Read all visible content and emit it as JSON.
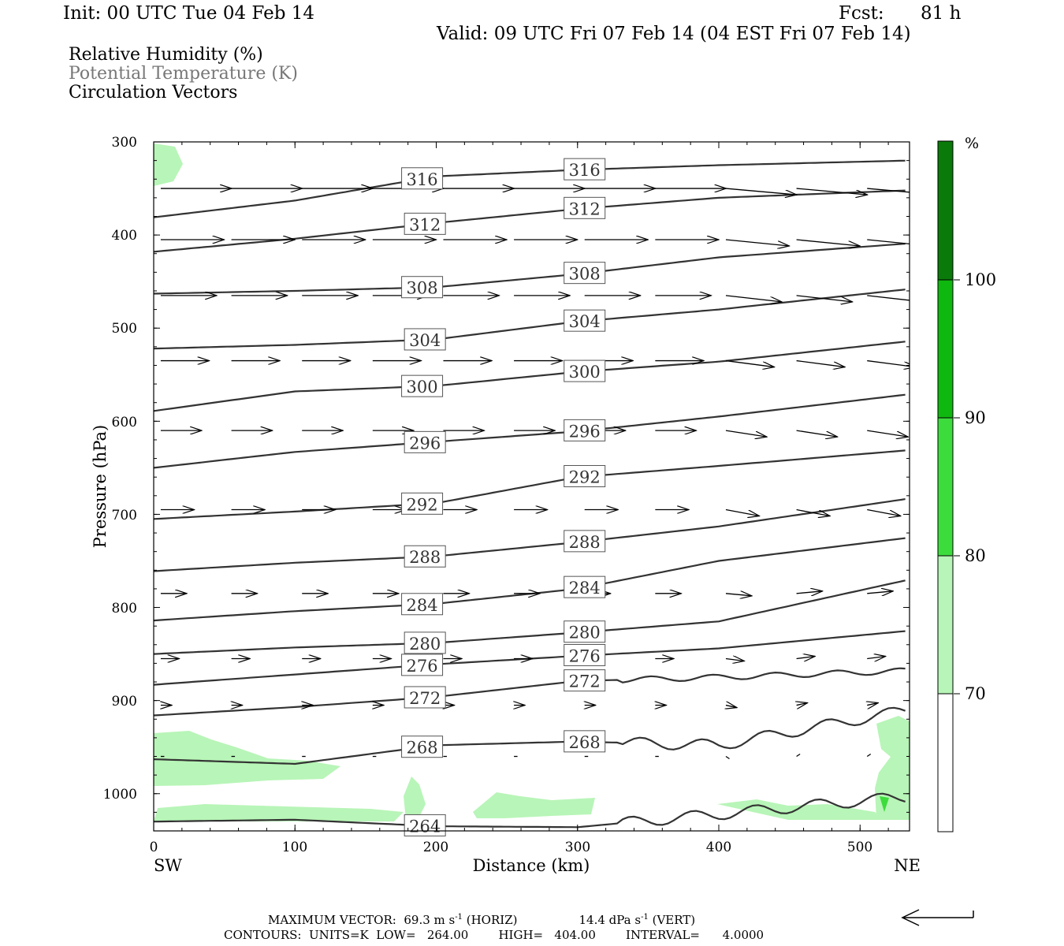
{
  "header": {
    "init": "Init: 00 UTC Tue 04 Feb 14",
    "fcst_label": "Fcst:",
    "fcst_value": "81 h",
    "valid": "Valid: 09 UTC Fri 07 Feb 14 (04 EST Fri 07 Feb 14)"
  },
  "legend": {
    "line1": "Relative Humidity (%)",
    "line2": "Potential Temperature (K)",
    "line3": "Circulation Vectors"
  },
  "colorbar": {
    "unit": "%",
    "labels": [
      "100",
      "90",
      "80",
      "70"
    ],
    "colors": [
      "#0a7a0a",
      "#0fb80f",
      "#3ddc3d",
      "#b8f5b8",
      "#ffffff"
    ]
  },
  "footer": {
    "line1_a": "MAXIMUM VECTOR:  69.3 m s",
    "line1_b": "-1",
    "line1_c": " (HORIZ)",
    "line1_d": "14.4 dPa s",
    "line1_e": "-1",
    "line1_f": " (VERT)",
    "line2": "CONTOURS:  UNITS=K  LOW=   264.00        HIGH=   404.00        INTERVAL=      4.0000"
  },
  "chart_data": {
    "type": "cross-section contour",
    "xlabel": "Distance (km)",
    "ylabel": "Pressure (hPa)",
    "x_ticks": [
      "0",
      "100",
      "200",
      "300",
      "400",
      "500"
    ],
    "y_ticks": [
      "300",
      "400",
      "500",
      "600",
      "700",
      "800",
      "900",
      "1000"
    ],
    "x_end_labels": [
      "SW",
      "NE"
    ],
    "xlim": [
      0,
      535
    ],
    "ylim": [
      300,
      1040
    ],
    "contours": [
      {
        "theta": 316,
        "points": [
          [
            0,
            381
          ],
          [
            100,
            363
          ],
          [
            200,
            337
          ],
          [
            300,
            330
          ],
          [
            400,
            325
          ],
          [
            535,
            320
          ]
        ]
      },
      {
        "theta": 312,
        "points": [
          [
            0,
            418
          ],
          [
            100,
            404
          ],
          [
            200,
            387
          ],
          [
            300,
            372
          ],
          [
            400,
            360
          ],
          [
            535,
            352
          ]
        ]
      },
      {
        "theta": 308,
        "points": [
          [
            0,
            463
          ],
          [
            100,
            460
          ],
          [
            200,
            456
          ],
          [
            300,
            442
          ],
          [
            400,
            424
          ],
          [
            535,
            409
          ]
        ]
      },
      {
        "theta": 304,
        "points": [
          [
            0,
            522
          ],
          [
            100,
            518
          ],
          [
            200,
            512
          ],
          [
            300,
            493
          ],
          [
            400,
            480
          ],
          [
            535,
            458
          ]
        ]
      },
      {
        "theta": 300,
        "points": [
          [
            0,
            589
          ],
          [
            100,
            568
          ],
          [
            200,
            562
          ],
          [
            300,
            547
          ],
          [
            400,
            536
          ],
          [
            535,
            514
          ]
        ]
      },
      {
        "theta": 296,
        "points": [
          [
            0,
            650
          ],
          [
            100,
            633
          ],
          [
            200,
            622
          ],
          [
            300,
            611
          ],
          [
            400,
            595
          ],
          [
            535,
            571
          ]
        ]
      },
      {
        "theta": 292,
        "points": [
          [
            0,
            705
          ],
          [
            100,
            697
          ],
          [
            200,
            688
          ],
          [
            300,
            660
          ],
          [
            400,
            648
          ],
          [
            535,
            631
          ]
        ]
      },
      {
        "theta": 288,
        "points": [
          [
            0,
            761
          ],
          [
            100,
            752
          ],
          [
            200,
            745
          ],
          [
            300,
            730
          ],
          [
            400,
            713
          ],
          [
            535,
            683
          ]
        ]
      },
      {
        "theta": 284,
        "points": [
          [
            0,
            814
          ],
          [
            100,
            804
          ],
          [
            200,
            796
          ],
          [
            300,
            780
          ],
          [
            400,
            750
          ],
          [
            535,
            725
          ]
        ]
      },
      {
        "theta": 280,
        "points": [
          [
            0,
            850
          ],
          [
            100,
            843
          ],
          [
            200,
            838
          ],
          [
            300,
            827
          ],
          [
            400,
            815
          ],
          [
            535,
            770
          ]
        ]
      },
      {
        "theta": 276,
        "points": [
          [
            0,
            883
          ],
          [
            100,
            872
          ],
          [
            200,
            861
          ],
          [
            300,
            852
          ],
          [
            400,
            844
          ],
          [
            535,
            825
          ]
        ]
      },
      {
        "theta": 272,
        "points": [
          [
            0,
            916
          ],
          [
            100,
            907
          ],
          [
            200,
            896
          ],
          [
            300,
            879
          ],
          [
            400,
            875
          ],
          [
            535,
            868
          ]
        ]
      },
      {
        "theta": 268,
        "points": [
          [
            0,
            963
          ],
          [
            100,
            968
          ],
          [
            200,
            948
          ],
          [
            300,
            944
          ],
          [
            400,
            948
          ],
          [
            535,
            910
          ]
        ]
      },
      {
        "theta": 264,
        "points": [
          [
            0,
            1030
          ],
          [
            100,
            1028
          ],
          [
            200,
            1035
          ],
          [
            300,
            1036
          ],
          [
            400,
            1022
          ],
          [
            535,
            1003
          ]
        ]
      }
    ],
    "max_vector_horiz": "69.3 m s-1",
    "max_vector_vert": "14.4 dPa s-1",
    "contour_units": "K",
    "contour_low": 264.0,
    "contour_high": 404.0,
    "contour_interval": 4.0
  }
}
